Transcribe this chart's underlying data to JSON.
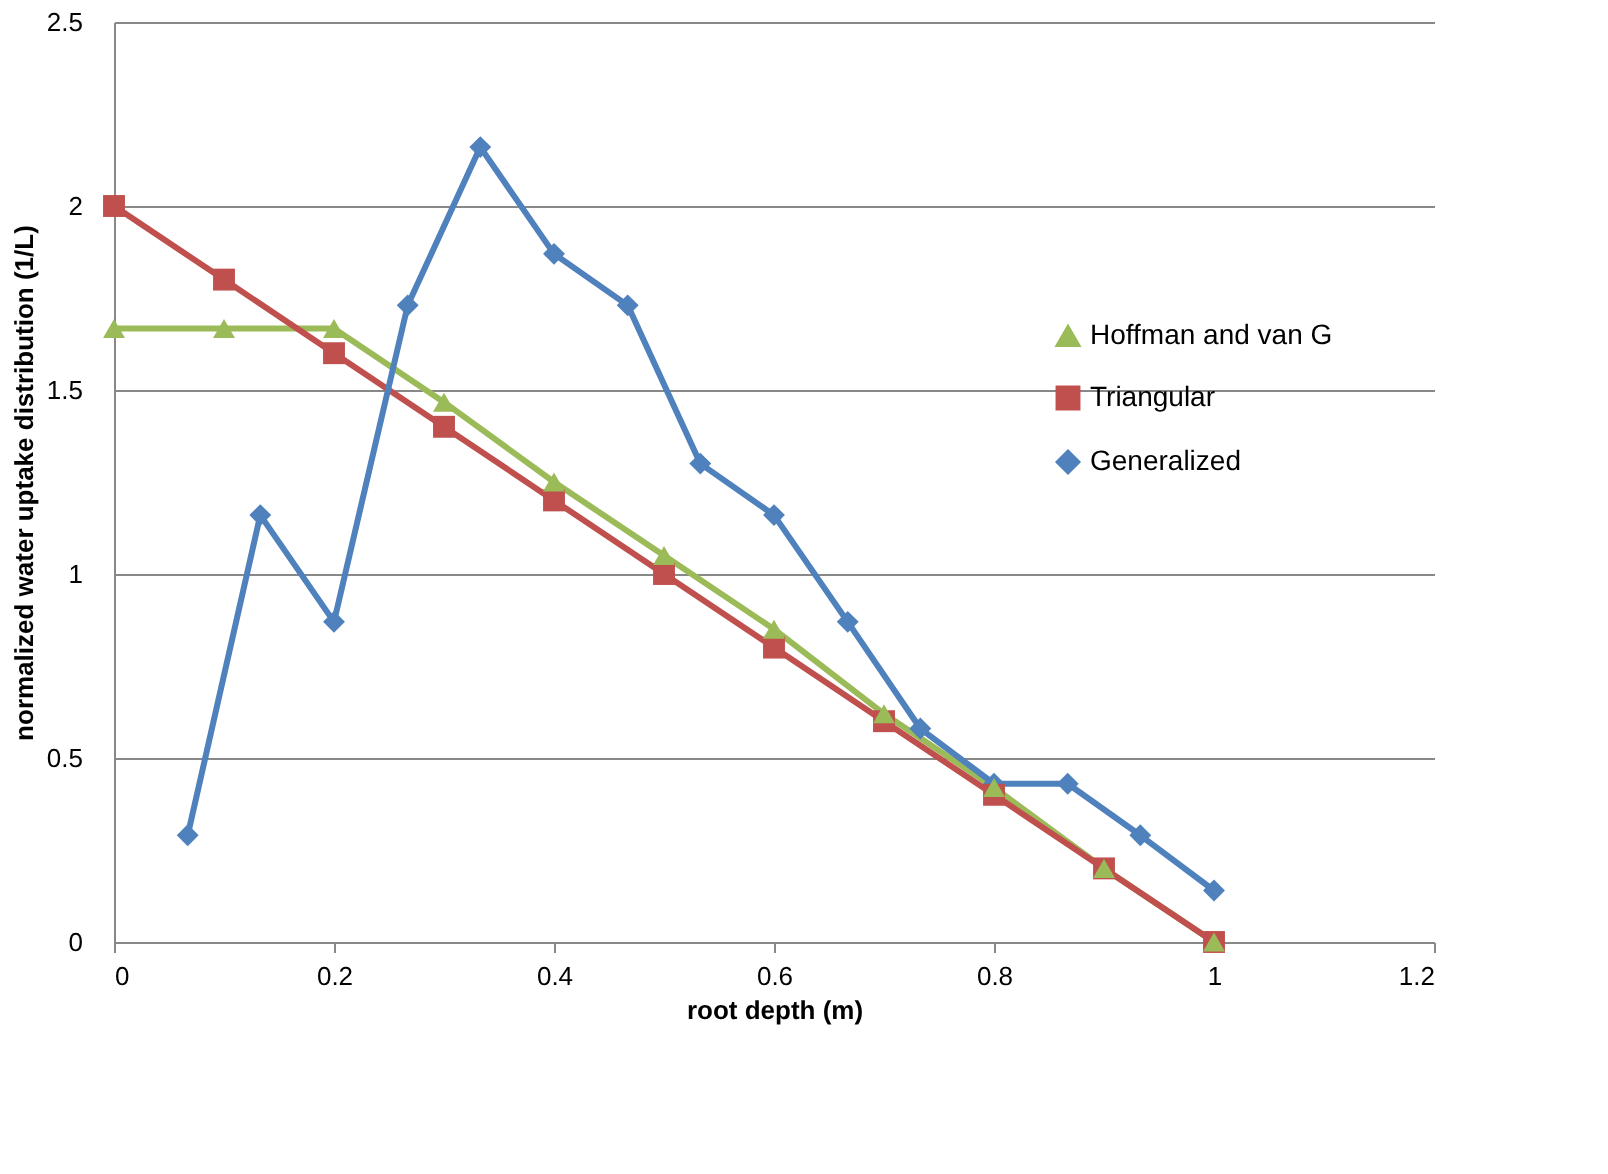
{
  "chart_data": {
    "type": "line",
    "xlabel": "root depth (m)",
    "ylabel": "normalized water uptake distribution  (1/L)",
    "xlim": [
      0,
      1.2
    ],
    "xticks": [
      0,
      0.2,
      0.4,
      0.6,
      0.8,
      1,
      1.2
    ],
    "ylim": [
      0,
      2.5
    ],
    "yticks": [
      0,
      0.5,
      1,
      1.5,
      2,
      2.5
    ],
    "grid": "y",
    "legend": "right",
    "line_style": "solid",
    "series": [
      {
        "name": "Hoffman and van G",
        "color": "#9bbb59",
        "marker": "triangle",
        "x": [
          0,
          0.1,
          0.2,
          0.3,
          0.4,
          0.5,
          0.6,
          0.7,
          0.8,
          0.9,
          1
        ],
        "values": [
          1.667,
          1.667,
          1.667,
          1.467,
          1.25,
          1.05,
          0.85,
          0.62,
          0.42,
          0.2,
          0
        ]
      },
      {
        "name": "Triangular",
        "color": "#c0504d",
        "marker": "square",
        "x": [
          0,
          0.1,
          0.2,
          0.3,
          0.4,
          0.5,
          0.6,
          0.7,
          0.8,
          0.9,
          1
        ],
        "values": [
          2,
          1.8,
          1.6,
          1.4,
          1.2,
          1,
          0.8,
          0.6,
          0.4,
          0.2,
          0
        ]
      },
      {
        "name": "Generalized",
        "color": "#4f81bd",
        "marker": "diamond",
        "x": [
          0.067,
          0.133,
          0.2,
          0.267,
          0.333,
          0.4,
          0.467,
          0.533,
          0.6,
          0.667,
          0.733,
          0.8,
          0.867,
          0.933,
          1
        ],
        "values": [
          0.29,
          1.16,
          0.87,
          1.73,
          2.16,
          1.87,
          1.73,
          1.3,
          1.16,
          0.87,
          0.58,
          0.43,
          0.43,
          0.29,
          0.14
        ]
      }
    ]
  }
}
